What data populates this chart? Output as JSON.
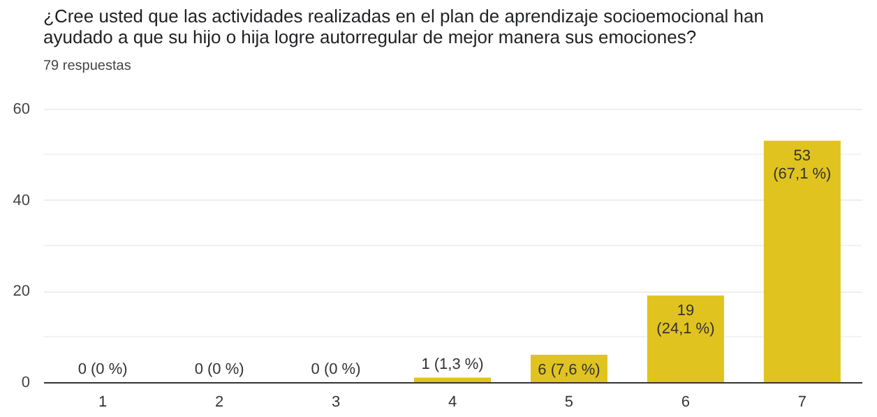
{
  "chart_data": {
    "type": "bar",
    "title": "¿Cree usted que las actividades realizadas en el plan de aprendizaje socioemocional han ayudado a que su hijo o hija logre autorregular de mejor manera sus emociones?",
    "subtitle": "79 respuestas",
    "categories": [
      "1",
      "2",
      "3",
      "4",
      "5",
      "6",
      "7"
    ],
    "values": [
      0,
      0,
      0,
      1,
      6,
      19,
      53
    ],
    "value_labels": [
      "0 (0 %)",
      "0 (0 %)",
      "0 (0 %)",
      "1 (1,3 %)",
      "6 (7,6 %)",
      "19\n(24,1 %)",
      "53\n(67,1 %)"
    ],
    "color": "#e0c31f",
    "ylim": [
      0,
      60
    ],
    "yticks": [
      0,
      {
        "value": 10,
        "label": null
      },
      20,
      {
        "value": 30,
        "label": null
      },
      40,
      {
        "value": 50,
        "label": null
      },
      60
    ],
    "grid": "y"
  }
}
